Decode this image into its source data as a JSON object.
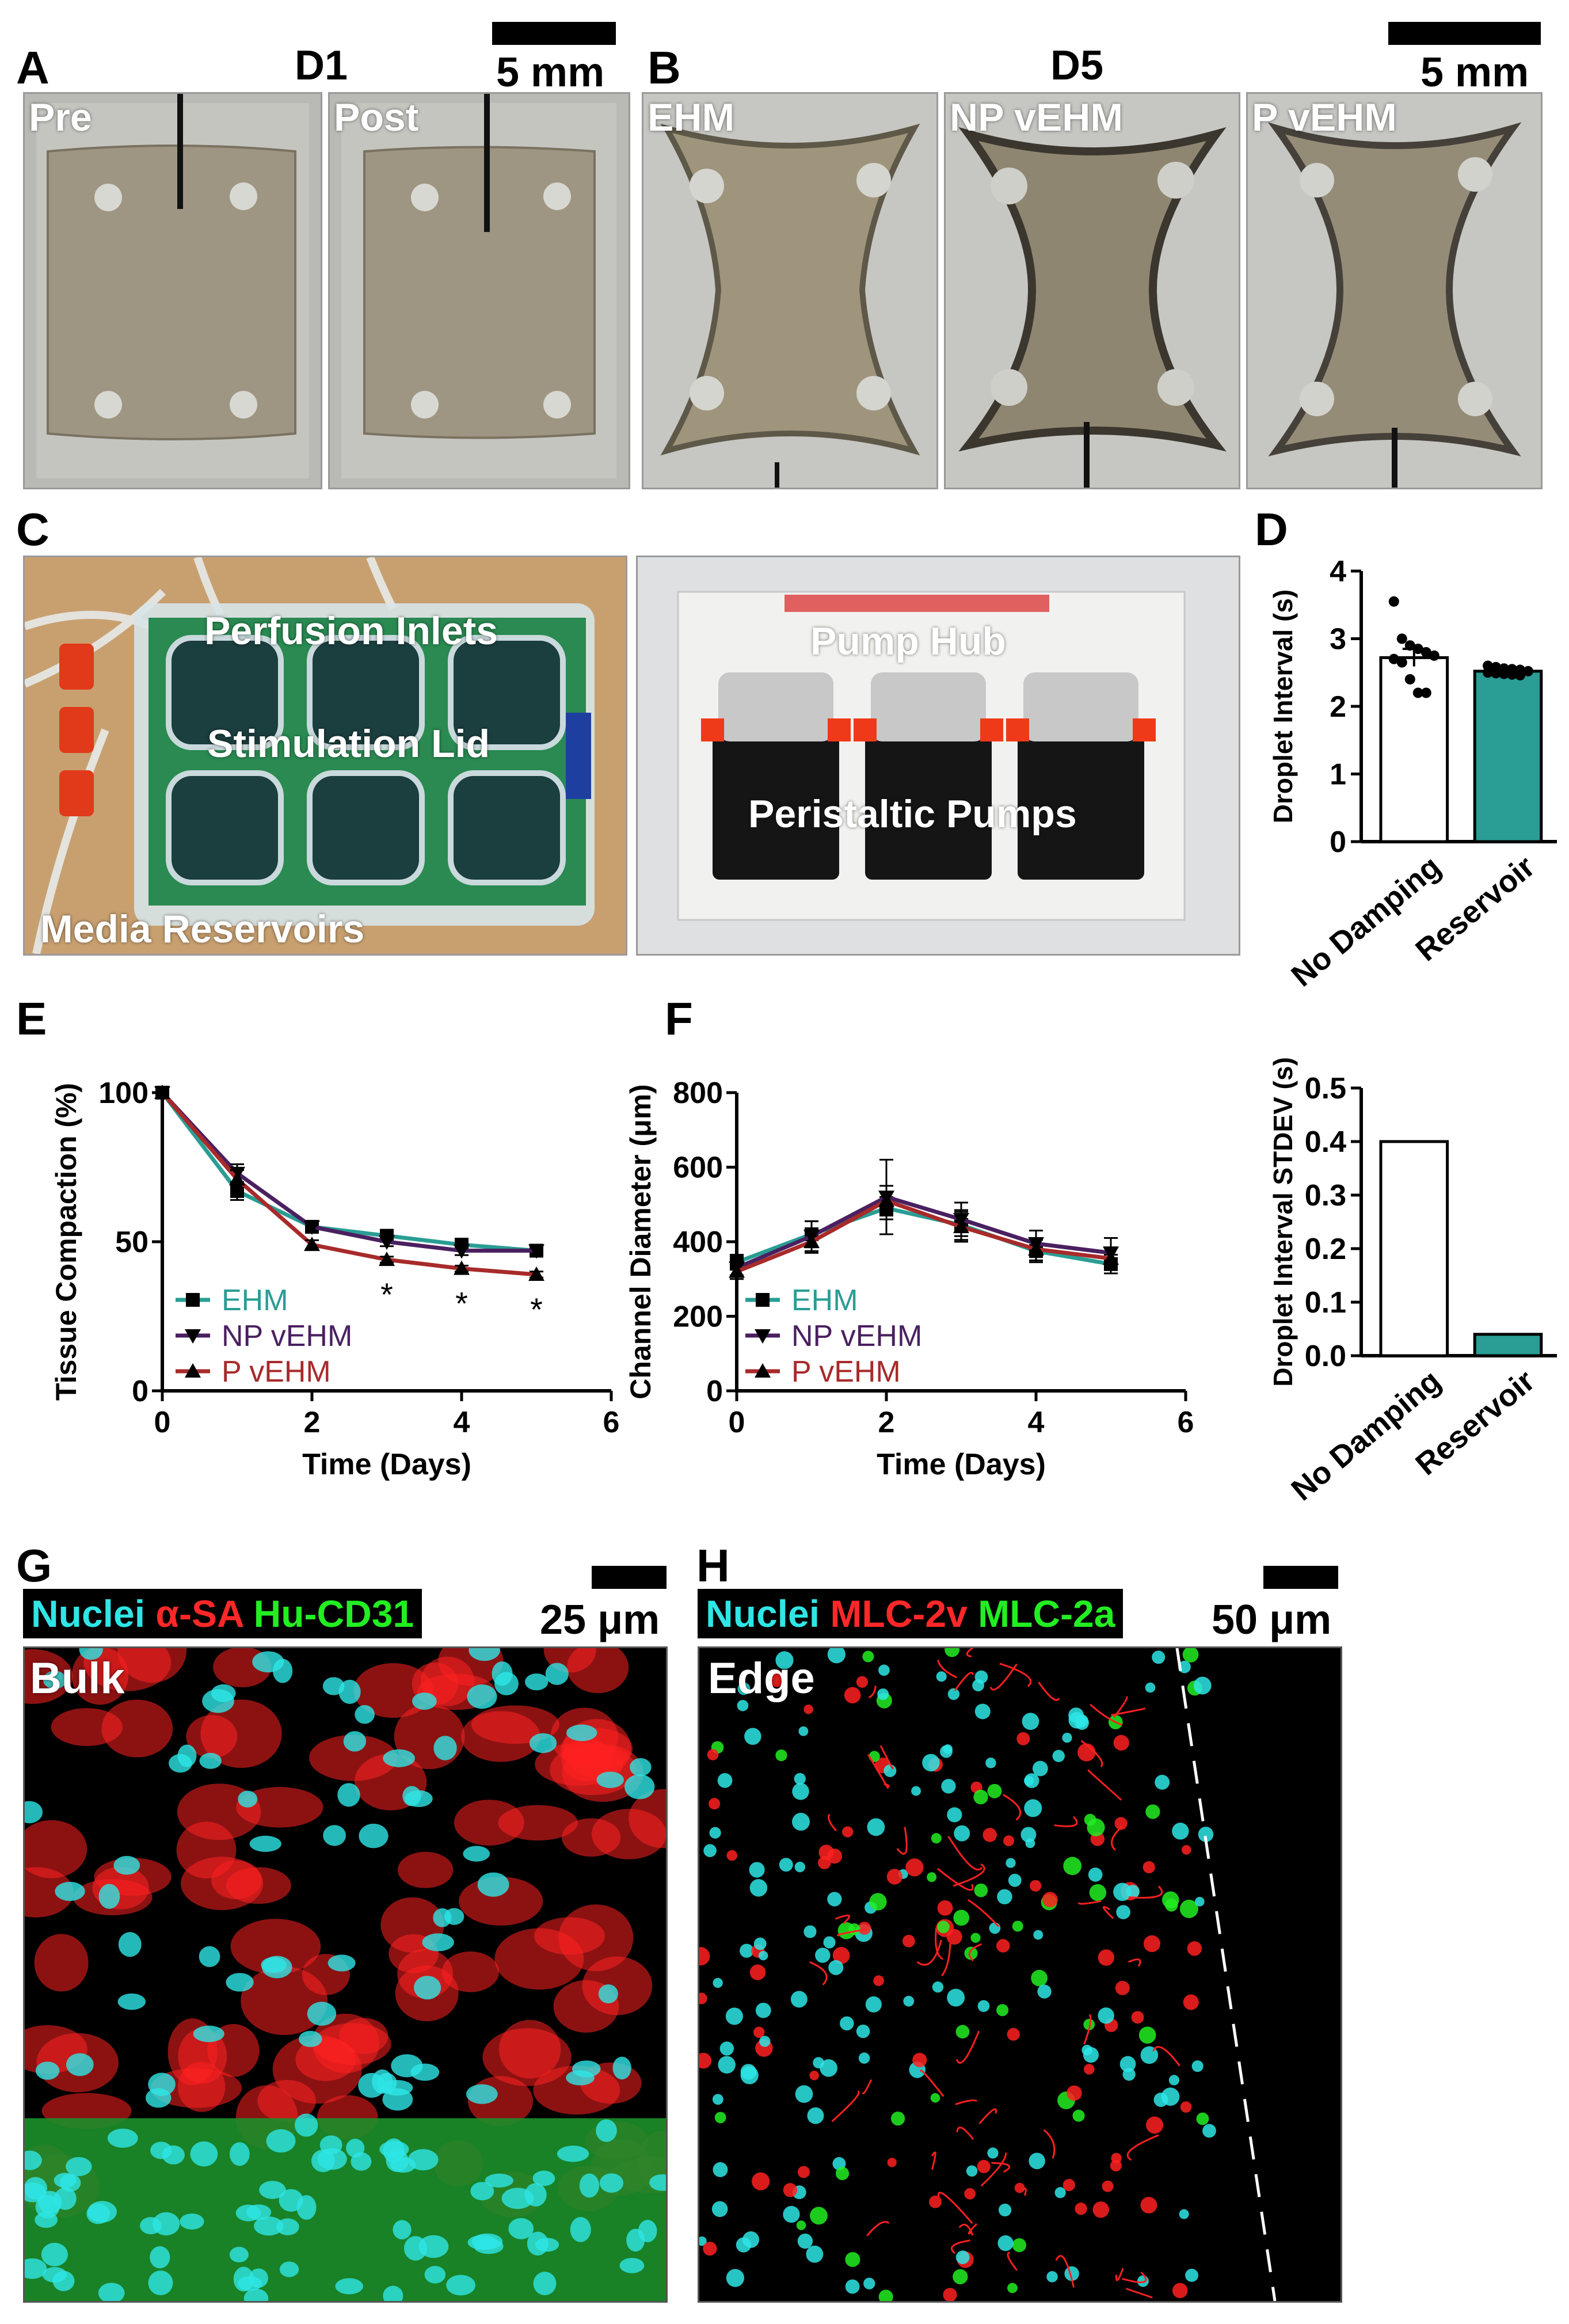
{
  "panels": {
    "A": {
      "label": "A",
      "day": "D1",
      "scale": "5 mm",
      "photos": [
        "Pre",
        "Post"
      ]
    },
    "B": {
      "label": "B",
      "day": "D5",
      "scale": "5 mm",
      "photos": [
        "EHM",
        "NP vEHM",
        "P vEHM"
      ]
    },
    "C": {
      "label": "C",
      "left": {
        "labels": [
          "Perfusion Inlets",
          "Stimulation Lid",
          "Media Reservoirs"
        ]
      },
      "right": {
        "labels": [
          "Pump Hub",
          "Peristaltic Pumps"
        ]
      }
    },
    "D": {
      "label": "D"
    },
    "E": {
      "label": "E"
    },
    "F": {
      "label": "F"
    },
    "G": {
      "label": "G",
      "stain": [
        "Nuclei",
        "α-SA",
        "Hu-CD31"
      ],
      "scale": "25 μm",
      "region": "Bulk"
    },
    "H": {
      "label": "H",
      "stain": [
        "Nuclei",
        "MLC-2v",
        "MLC-2a"
      ],
      "scale": "50 μm",
      "region": "Edge"
    }
  },
  "colors": {
    "cyan": "#2ee6e6",
    "red": "#ff2020",
    "green": "#22ee22",
    "teal": "#2a9d94",
    "purple": "#4a2060",
    "darkred": "#a82a2a"
  },
  "chart_data": [
    {
      "id": "D-top",
      "type": "bar",
      "ylabel": "Droplet Interval (s)",
      "categories": [
        "No Damping",
        "Reservoir"
      ],
      "values": [
        2.72,
        2.52
      ],
      "errors": [
        0.13,
        0.03
      ],
      "ylim": [
        0,
        4
      ],
      "yticks": [
        "0",
        "1",
        "2",
        "3",
        "4"
      ],
      "points": {
        "No Damping": [
          3.55,
          3.0,
          2.9,
          2.85,
          2.8,
          2.75,
          2.7,
          2.65,
          2.4,
          2.2,
          2.2
        ],
        "Reservoir": [
          2.6,
          2.58,
          2.56,
          2.55,
          2.54,
          2.52,
          2.5,
          2.49,
          2.48,
          2.47,
          2.46
        ]
      }
    },
    {
      "id": "D-bottom",
      "type": "bar",
      "ylabel": "Droplet  Interval STDEV (s)",
      "categories": [
        "No Damping",
        "Reservoir"
      ],
      "values": [
        0.4,
        0.04
      ],
      "ylim": [
        0,
        0.5
      ],
      "yticks": [
        "0.0",
        "0.1",
        "0.2",
        "0.3",
        "0.4",
        "0.5"
      ]
    },
    {
      "id": "E",
      "type": "line",
      "ylabel": "Tissue  Compaction (%)",
      "xlabel": "Time (Days)",
      "xlim": [
        0,
        6
      ],
      "ylim": [
        0,
        100
      ],
      "xticks": [
        "0",
        "2",
        "4",
        "6"
      ],
      "yticks": [
        "0",
        "50",
        "100"
      ],
      "x": [
        0,
        1,
        2,
        3,
        4,
        5
      ],
      "series": [
        {
          "name": "EHM",
          "values": [
            100,
            67,
            55,
            52,
            49,
            47
          ],
          "errors": [
            0,
            3,
            1.5,
            1.5,
            2,
            1.5
          ]
        },
        {
          "name": "NP vEHM",
          "values": [
            100,
            73,
            55,
            50,
            47,
            47
          ],
          "errors": [
            0,
            3,
            1.5,
            1.5,
            1.5,
            1.5
          ]
        },
        {
          "name": "P vEHM",
          "values": [
            100,
            71,
            49,
            44,
            41,
            39
          ],
          "errors": [
            0,
            3,
            1.5,
            1,
            1,
            1
          ]
        }
      ],
      "annotations": [
        {
          "x": 3,
          "text": "*"
        },
        {
          "x": 4,
          "text": "*"
        },
        {
          "x": 5,
          "text": "*"
        }
      ]
    },
    {
      "id": "F",
      "type": "line",
      "ylabel": "Channel Diameter (μm)",
      "xlabel": "Time (Days)",
      "xlim": [
        0,
        6
      ],
      "ylim": [
        0,
        800
      ],
      "xticks": [
        "0",
        "2",
        "4",
        "6"
      ],
      "yticks": [
        "0",
        "200",
        "400",
        "600",
        "800"
      ],
      "x": [
        0,
        1,
        2,
        3,
        4,
        5
      ],
      "series": [
        {
          "name": "EHM",
          "values": [
            345,
            420,
            490,
            445,
            375,
            340
          ],
          "errors": [
            20,
            35,
            30,
            40,
            30,
            25
          ]
        },
        {
          "name": "NP vEHM",
          "values": [
            330,
            415,
            520,
            460,
            395,
            370
          ],
          "errors": [
            20,
            40,
            100,
            45,
            35,
            40
          ]
        },
        {
          "name": "P vEHM",
          "values": [
            320,
            400,
            510,
            440,
            380,
            355
          ],
          "errors": [
            20,
            30,
            40,
            40,
            30,
            30
          ]
        }
      ]
    }
  ]
}
